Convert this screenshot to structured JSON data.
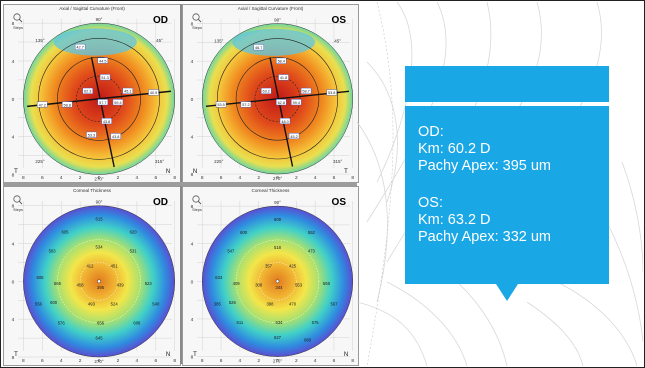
{
  "top_left": {
    "title": "Axial / Sagittal Curvature (Front)",
    "eye": "OD",
    "labels": [
      "42.7",
      "44.5",
      "40.9",
      "45.1",
      "51.3",
      "62.3",
      "57.7",
      "59.4",
      "47.2",
      "58.8",
      "43.8",
      "43.8",
      "53.3"
    ],
    "angles": {
      "top": "90°",
      "bottom": "270°",
      "left": "180°",
      "right": "0°",
      "tl": "135°",
      "tr": "45°",
      "bl": "225°",
      "br": "315°"
    },
    "ticks": [
      "8",
      "6",
      "4",
      "2",
      "0",
      "2",
      "4",
      "6",
      "8"
    ],
    "side_left": "T",
    "side_right": "N",
    "icon": "Steps"
  },
  "top_right": {
    "title": "Axial / Sagittal Curvature (Front)",
    "eye": "OS",
    "labels": [
      "46.7",
      "58.4",
      "53.8",
      "58.7",
      "41.8",
      "63.2",
      "62.8",
      "59.4",
      "53.5",
      "57.2",
      "48.0",
      "45.2"
    ],
    "angles": {
      "top": "90°",
      "bottom": "270°",
      "left": "180°",
      "right": "0°",
      "tl": "135°",
      "tr": "45°",
      "bl": "225°",
      "br": "315°"
    },
    "ticks": [
      "8",
      "6",
      "4",
      "2",
      "0",
      "2",
      "4",
      "6",
      "8"
    ],
    "side_left": "N",
    "side_right": "T",
    "icon": "Steps"
  },
  "bottom_left": {
    "title": "Corneal Thickness",
    "eye": "OD",
    "labels": [
      "615",
      "620",
      "605",
      "583",
      "534",
      "531",
      "605",
      "565",
      "412",
      "451",
      "523",
      "556",
      "458",
      "395",
      "439",
      "600",
      "493",
      "524",
      "576",
      "608",
      "540",
      "656",
      "645"
    ],
    "angles": {
      "top": "90°",
      "bottom": "270°"
    },
    "ticks": [
      "8",
      "6",
      "4",
      "2",
      "0",
      "2",
      "4",
      "6",
      "8"
    ],
    "side_left": "T",
    "side_right": "N",
    "icon": "Steps"
  },
  "bottom_right": {
    "title": "Corneal Thickness",
    "eye": "OS",
    "labels": [
      "609",
      "552",
      "600",
      "547",
      "518",
      "473",
      "633",
      "409",
      "357",
      "425",
      "568",
      "385",
      "308",
      "344",
      "553",
      "526",
      "388",
      "470",
      "611",
      "575",
      "567",
      "634",
      "627",
      "680"
    ],
    "angles": {
      "top": "90°",
      "bottom": "270°"
    },
    "ticks": [
      "8",
      "6",
      "4",
      "2",
      "0",
      "2",
      "4",
      "6",
      "8"
    ],
    "side_left": "T",
    "side_right": "N",
    "icon": "Steps"
  },
  "callout": {
    "od_head": "OD:",
    "od_km": "Km: 60.2 D",
    "od_pachy": "Pachy Apex: 395 um",
    "os_head": "OS:",
    "os_km": "Km: 63.2 D",
    "os_pachy": "Pachy Apex: 332 um",
    "color": "#19a7e6"
  }
}
